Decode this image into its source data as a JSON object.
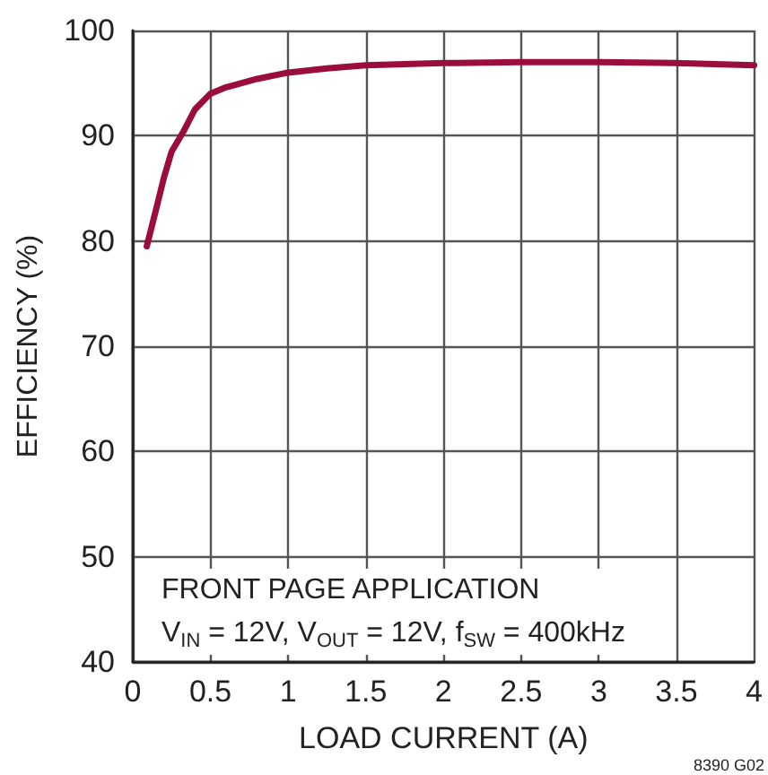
{
  "chart_data": {
    "type": "line",
    "xlabel": "LOAD CURRENT (A)",
    "ylabel": "EFFICIENCY (%)",
    "series": [
      {
        "color": "#9b0d3a",
        "x": [
          0.09,
          0.15,
          0.2,
          0.25,
          0.33,
          0.4,
          0.5,
          0.6,
          0.8,
          1.0,
          1.25,
          1.5,
          2,
          2.5,
          3,
          3.5,
          4
        ],
        "values": [
          79.5,
          83,
          86,
          88.5,
          90.5,
          92.5,
          94,
          94.6,
          95.4,
          96,
          96.4,
          96.7,
          96.9,
          97,
          97,
          96.9,
          96.7
        ]
      }
    ],
    "xlim": [
      0,
      4
    ],
    "xticks": [
      0,
      0.5,
      1,
      1.5,
      2,
      2.5,
      3,
      3.5,
      4
    ],
    "ylim": [
      40,
      100
    ],
    "yticks": [
      40,
      50,
      60,
      70,
      80,
      90,
      100
    ],
    "grid": true,
    "marker": "none",
    "line_style": "solid",
    "annotations": [
      "FRONT PAGE APPLICATION",
      "V$_{IN}$ = 12V, V$_{OUT}$ = 12V, f$_{SW}$ = 400kHz",
      "8390 G02"
    ]
  }
}
